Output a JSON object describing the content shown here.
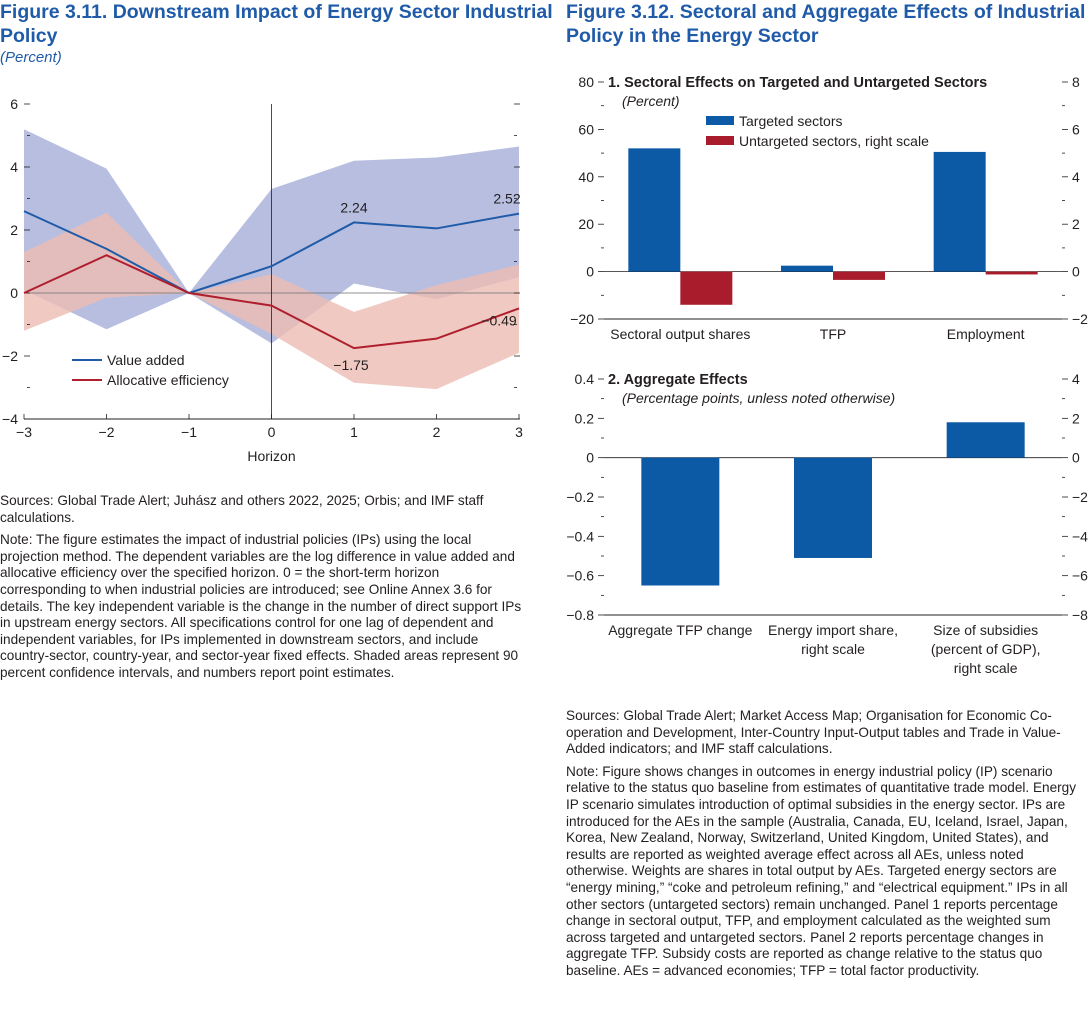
{
  "fig311": {
    "title_line1": "Figure 3.11.  Downstream Impact of Energy Sector Industrial",
    "title_line2": "Policy",
    "subtitle": "(Percent)",
    "sources": "Sources: Global Trade Alert; Juhász and others 2022, 2025; Orbis; and IMF staff calculations.",
    "note": "Note: The figure estimates the impact of industrial policies (IPs) using the local projection method. The dependent variables are the log difference in value added and allocative efficiency over the specified horizon. 0 = the short-term horizon corresponding to when industrial policies are introduced; see Online Annex 3.6 for details. The key independent variable is the change in the number of direct support IPs in upstream energy sectors. All specifications control for one lag of dependent and independent variables, for IPs implemented in downstream sectors, and include country-sector, country-year, and sector-year fixed effects. Shaded areas represent 90 percent confidence intervals, and numbers report point estimates.",
    "chart_data": {
      "type": "line",
      "xlabel": "Horizon",
      "ylabel": "",
      "x": [
        -3,
        -2,
        -1,
        0,
        1,
        2,
        3
      ],
      "x_tick_labels": [
        "−3",
        "−2",
        "−1",
        "0",
        "1",
        "2",
        "3"
      ],
      "ylim": [
        -4,
        6
      ],
      "y_ticks": [
        6,
        4,
        2,
        0,
        -2,
        -4
      ],
      "y_tick_labels": [
        "6",
        "4",
        "2",
        "0",
        "−2",
        "−4"
      ],
      "series": [
        {
          "name": "Value added",
          "color": "#1f5ba8",
          "band_color": "#b3bbde",
          "values": [
            2.6,
            1.4,
            0,
            0.85,
            2.24,
            2.05,
            2.52
          ],
          "lower": [
            0.1,
            -1.15,
            0,
            -1.6,
            0.3,
            -0.2,
            0.5
          ],
          "upper": [
            5.2,
            3.95,
            0,
            3.3,
            4.2,
            4.3,
            4.65
          ]
        },
        {
          "name": "Allocative efficiency",
          "color": "#b01f2e",
          "band_color": "#ecbdb3",
          "values": [
            0,
            1.2,
            0,
            -0.4,
            -1.75,
            -1.45,
            -0.49
          ],
          "lower": [
            -1.2,
            -0.15,
            0,
            -1.3,
            -2.85,
            -3.05,
            -1.9
          ],
          "upper": [
            1.3,
            2.55,
            0,
            0.6,
            -0.6,
            0.25,
            0.9
          ]
        }
      ],
      "annotations": [
        {
          "text": "2.24",
          "x": 1,
          "y": 2.24
        },
        {
          "text": "2.52",
          "x": 3,
          "y": 2.52
        },
        {
          "text": "−1.75",
          "x": 1,
          "y": -1.75
        },
        {
          "text": "−0.49",
          "x": 3,
          "y": -0.49
        }
      ],
      "legend": [
        "Value added",
        "Allocative efficiency"
      ]
    }
  },
  "fig312": {
    "title_line1": "Figure 3.12.  Sectoral and Aggregate Effects of Industrial",
    "title_line2": "Policy in the Energy Sector",
    "sources": "Sources: Global Trade Alert; Market Access Map; Organisation for Economic Co-operation and Development, Inter-Country Input-Output tables and Trade in Value-Added indicators; and IMF staff calculations.",
    "note": "Note: Figure shows changes in outcomes in energy industrial policy (IP) scenario relative to the status quo baseline from estimates of quantitative trade model. Energy IP scenario simulates introduction of optimal subsidies in the energy sector. IPs are introduced for the AEs in the sample (Australia, Canada, EU, Iceland, Israel, Japan, Korea, New Zealand, Norway, Switzerland, United Kingdom, United States), and results are reported as weighted average effect across all AEs, unless noted otherwise. Weights are shares in total output by AEs. Targeted energy sectors are “energy mining,” “coke and petroleum refining,” and “electrical equipment.” IPs in all other sectors (untargeted sectors) remain unchanged. Panel 1 reports percentage change in sectoral output, TFP, and employment calculated as the weighted sum across targeted and untargeted sectors. Panel 2 reports percentage changes in aggregate TFP. Subsidy costs are reported as change relative to the status quo baseline. AEs = advanced economies; TFP = total factor productivity.",
    "chart_data": [
      {
        "type": "bar",
        "title": "1. Sectoral Effects on Targeted and Untargeted Sectors",
        "subtitle": "(Percent)",
        "categories": [
          "Sectoral output shares",
          "TFP",
          "Employment"
        ],
        "ylim": [
          -20,
          80
        ],
        "y_ticks": [
          80,
          60,
          40,
          20,
          0,
          -20
        ],
        "y_tick_labels": [
          "80",
          "60",
          "40",
          "20",
          "0",
          "−20"
        ],
        "y2lim": [
          -2,
          8
        ],
        "y2_ticks": [
          8,
          6,
          4,
          2,
          0,
          -2
        ],
        "y2_tick_labels": [
          "8",
          "6",
          "4",
          "2",
          "0",
          "−2"
        ],
        "series": [
          {
            "name": "Targeted sectors",
            "color": "#0c5aa6",
            "axis": "left",
            "values": [
              52,
              2.5,
              50.5
            ]
          },
          {
            "name": "Untargeted sectors, right scale",
            "color": "#a81c2c",
            "axis": "right",
            "values": [
              -1.4,
              -0.35,
              -0.12
            ]
          }
        ]
      },
      {
        "type": "bar",
        "title": "2. Aggregate Effects",
        "subtitle": "(Percentage points, unless noted otherwise)",
        "categories": [
          [
            "Aggregate TFP change"
          ],
          [
            "Energy import share,",
            "right scale"
          ],
          [
            "Size of subsidies",
            "(percent of GDP),",
            "right scale"
          ]
        ],
        "ylim": [
          -0.8,
          0.4
        ],
        "y_ticks": [
          0.4,
          0.2,
          0,
          -0.2,
          -0.4,
          -0.6,
          -0.8
        ],
        "y_tick_labels": [
          "0.4",
          "0.2",
          "0",
          "−0.2",
          "−0.4",
          "−0.6",
          "−0.8"
        ],
        "y2lim": [
          -8,
          4
        ],
        "y2_ticks": [
          4,
          2,
          0,
          -2,
          -4,
          -6,
          -8
        ],
        "y2_tick_labels": [
          "4",
          "2",
          "0",
          "−2",
          "−4",
          "−6",
          "−8"
        ],
        "series": [
          {
            "name": "Aggregate effects",
            "color": "#0c5aa6",
            "axes": [
              "left",
              "right",
              "right"
            ],
            "values": [
              -0.65,
              -5.1,
              1.8
            ]
          }
        ]
      }
    ]
  }
}
